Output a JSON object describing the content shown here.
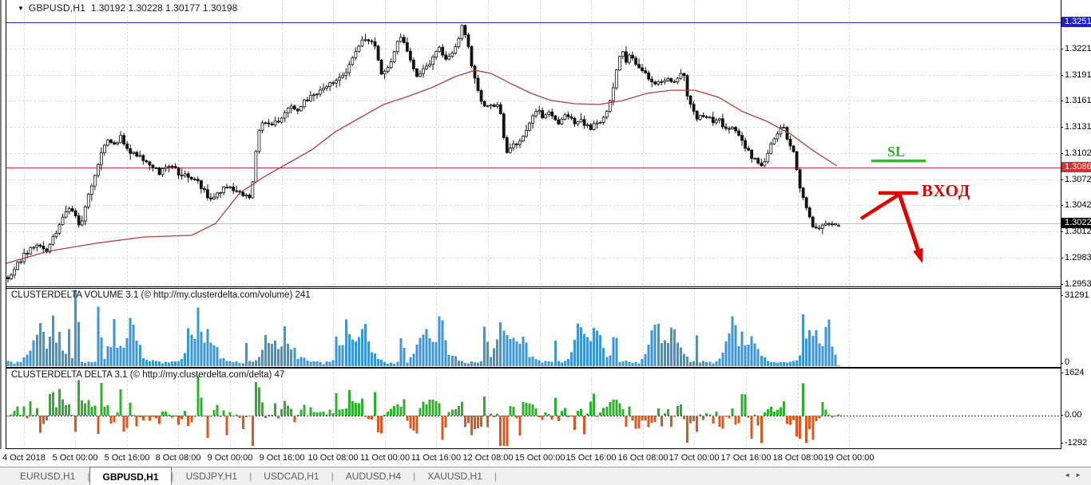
{
  "window": {
    "dropdown_icon": "▼",
    "symbol_period": "GBPUSD,H1",
    "ohlc_text": "1.30192 1.30228 1.30177 1.30198"
  },
  "price_axis": {
    "labels": [
      {
        "text": "1.32510",
        "price": 1.3251,
        "style": "blue-box"
      },
      {
        "text": "1.32210",
        "price": 1.3221,
        "style": "plain"
      },
      {
        "text": "1.31910",
        "price": 1.3191,
        "style": "plain"
      },
      {
        "text": "1.31615",
        "price": 1.31615,
        "style": "plain"
      },
      {
        "text": "1.31315",
        "price": 1.31315,
        "style": "plain"
      },
      {
        "text": "1.31020",
        "price": 1.3102,
        "style": "plain"
      },
      {
        "text": "1.30860",
        "price": 1.3086,
        "style": "red-box"
      },
      {
        "text": "1.30720",
        "price": 1.3072,
        "style": "plain"
      },
      {
        "text": "1.30425",
        "price": 1.30425,
        "style": "plain"
      },
      {
        "text": "1.30223",
        "price": 1.30223,
        "style": "black-box"
      },
      {
        "text": "1.30125",
        "price": 1.30125,
        "style": "plain"
      },
      {
        "text": "1.29830",
        "price": 1.2983,
        "style": "plain"
      },
      {
        "text": "1.29530",
        "price": 1.2953,
        "style": "plain"
      }
    ]
  },
  "volume_panel": {
    "header": "CLUSTERDELTA VOLUME 3.1 (© http://my.clusterdelta.com/volume) 241",
    "axis_max": "31291",
    "axis_zero": "0"
  },
  "delta_panel": {
    "header": "CLUSTERDELTA DELTA 3.1 (© http://my.clusterdelta.com/delta) 47",
    "axis_max": "1624",
    "axis_zero": "0.00",
    "axis_min": "-1292"
  },
  "time_axis": {
    "labels": [
      "4 Oct 2018",
      "5 Oct 00:00",
      "5 Oct 16:00",
      "8 Oct 08:00",
      "9 Oct 00:00",
      "9 Oct 16:00",
      "10 Oct 08:00",
      "11 Oct 00:00",
      "11 Oct 16:00",
      "12 Oct 08:00",
      "15 Oct 00:00",
      "15 Oct 16:00",
      "16 Oct 08:00",
      "17 Oct 00:00",
      "17 Oct 16:00",
      "18 Oct 08:00",
      "19 Oct 00:00"
    ]
  },
  "annotations": {
    "sl_label": "SL",
    "entry_label": "ВХОД"
  },
  "tabs": [
    {
      "label": "EURUSD,H1",
      "active": false
    },
    {
      "label": "GBPUSD,H1",
      "active": true
    },
    {
      "label": "USDJPY,H1",
      "active": false
    },
    {
      "label": "USDCAD,H1",
      "active": false
    },
    {
      "label": "AUDUSD,H4",
      "active": false
    },
    {
      "label": "XAUUSD,H1",
      "active": false
    }
  ],
  "tab_scroll": {
    "left": "◄",
    "right": "►"
  },
  "colors": {
    "volume_bar": "#3d96d2",
    "delta_pos": "#2fae2f",
    "delta_neg": "#d8581f",
    "candle": "#111111",
    "candle_up_fill": "#ffffff",
    "ma_line": "#b04040",
    "level_red": "#cc3333",
    "level_blue": "#2a2ac0",
    "bid_line": "#bdbdbd",
    "grid": "#d2d2d2",
    "axis_box_blue": "#2222cc",
    "axis_box_red": "#cc3333",
    "axis_box_black": "#000000",
    "sl_green": "#3cb43c",
    "entry_red": "#e00000"
  },
  "chart_data": {
    "type": "candlestick",
    "symbol": "GBPUSD",
    "timeframe": "H1",
    "title": "GBPUSD,H1  1.30192 1.30228 1.30177 1.30198",
    "ylim": [
      1.29501,
      1.32765
    ],
    "levels": {
      "upper_blue_line": 1.3251,
      "stop_red_line": 1.3086,
      "bid": 1.30223
    },
    "last_candle": {
      "open": 1.30192,
      "high": 1.30228,
      "low": 1.30177,
      "close": 1.30198
    },
    "close_path": [
      [
        8,
        1.2958
      ],
      [
        20,
        1.2972
      ],
      [
        30,
        1.2986
      ],
      [
        45,
        1.2997
      ],
      [
        58,
        1.2991
      ],
      [
        70,
        1.3012
      ],
      [
        85,
        1.3042
      ],
      [
        95,
        1.303
      ],
      [
        100,
        1.3018
      ],
      [
        112,
        1.3058
      ],
      [
        125,
        1.3098
      ],
      [
        135,
        1.3118
      ],
      [
        145,
        1.3113
      ],
      [
        152,
        1.3122
      ],
      [
        160,
        1.3104
      ],
      [
        172,
        1.3101
      ],
      [
        182,
        1.3092
      ],
      [
        192,
        1.3086
      ],
      [
        200,
        1.3079
      ],
      [
        208,
        1.3085
      ],
      [
        215,
        1.309
      ],
      [
        222,
        1.308
      ],
      [
        230,
        1.3077
      ],
      [
        240,
        1.3074
      ],
      [
        250,
        1.3067
      ],
      [
        258,
        1.3055
      ],
      [
        265,
        1.3048
      ],
      [
        272,
        1.3057
      ],
      [
        280,
        1.3061
      ],
      [
        290,
        1.3063
      ],
      [
        298,
        1.3056
      ],
      [
        305,
        1.3054
      ],
      [
        312,
        1.305
      ],
      [
        318,
        1.3075
      ],
      [
        322,
        1.3125
      ],
      [
        330,
        1.3139
      ],
      [
        340,
        1.3136
      ],
      [
        350,
        1.3136
      ],
      [
        358,
        1.3147
      ],
      [
        365,
        1.3158
      ],
      [
        372,
        1.315
      ],
      [
        380,
        1.3161
      ],
      [
        390,
        1.3167
      ],
      [
        400,
        1.3172
      ],
      [
        410,
        1.3177
      ],
      [
        420,
        1.3186
      ],
      [
        430,
        1.319
      ],
      [
        440,
        1.3205
      ],
      [
        448,
        1.3224
      ],
      [
        455,
        1.323
      ],
      [
        462,
        1.3232
      ],
      [
        470,
        1.3222
      ],
      [
        478,
        1.3192
      ],
      [
        484,
        1.3195
      ],
      [
        490,
        1.3204
      ],
      [
        496,
        1.3222
      ],
      [
        500,
        1.3237
      ],
      [
        505,
        1.3228
      ],
      [
        512,
        1.3213
      ],
      [
        520,
        1.319
      ],
      [
        527,
        1.3195
      ],
      [
        535,
        1.32
      ],
      [
        542,
        1.3213
      ],
      [
        550,
        1.3222
      ],
      [
        557,
        1.3209
      ],
      [
        563,
        1.3212
      ],
      [
        570,
        1.322
      ],
      [
        575,
        1.3232
      ],
      [
        578,
        1.3248
      ],
      [
        582,
        1.3236
      ],
      [
        586,
        1.3227
      ],
      [
        590,
        1.3205
      ],
      [
        595,
        1.3187
      ],
      [
        600,
        1.3167
      ],
      [
        606,
        1.3154
      ],
      [
        612,
        1.3154
      ],
      [
        618,
        1.3157
      ],
      [
        625,
        1.3156
      ],
      [
        630,
        1.313
      ],
      [
        633,
        1.3099
      ],
      [
        638,
        1.3108
      ],
      [
        645,
        1.3112
      ],
      [
        652,
        1.3117
      ],
      [
        660,
        1.3131
      ],
      [
        668,
        1.3145
      ],
      [
        673,
        1.3154
      ],
      [
        680,
        1.314
      ],
      [
        687,
        1.3149
      ],
      [
        694,
        1.3142
      ],
      [
        700,
        1.3136
      ],
      [
        707,
        1.3145
      ],
      [
        714,
        1.3142
      ],
      [
        720,
        1.3133
      ],
      [
        727,
        1.314
      ],
      [
        734,
        1.3134
      ],
      [
        740,
        1.3131
      ],
      [
        747,
        1.3136
      ],
      [
        754,
        1.3138
      ],
      [
        760,
        1.3149
      ],
      [
        766,
        1.317
      ],
      [
        772,
        1.3195
      ],
      [
        778,
        1.322
      ],
      [
        784,
        1.3208
      ],
      [
        790,
        1.3215
      ],
      [
        796,
        1.3205
      ],
      [
        803,
        1.3199
      ],
      [
        810,
        1.319
      ],
      [
        817,
        1.3184
      ],
      [
        824,
        1.3181
      ],
      [
        831,
        1.3186
      ],
      [
        838,
        1.3187
      ],
      [
        845,
        1.3184
      ],
      [
        851,
        1.319
      ],
      [
        857,
        1.319
      ],
      [
        862,
        1.316
      ],
      [
        868,
        1.3149
      ],
      [
        874,
        1.314
      ],
      [
        880,
        1.3145
      ],
      [
        887,
        1.3143
      ],
      [
        893,
        1.3136
      ],
      [
        900,
        1.314
      ],
      [
        907,
        1.3131
      ],
      [
        914,
        1.3131
      ],
      [
        920,
        1.3127
      ],
      [
        927,
        1.3122
      ],
      [
        933,
        1.3108
      ],
      [
        940,
        1.3099
      ],
      [
        947,
        1.3095
      ],
      [
        953,
        1.309
      ],
      [
        958,
        1.3092
      ],
      [
        963,
        1.3108
      ],
      [
        970,
        1.3122
      ],
      [
        977,
        1.3129
      ],
      [
        982,
        1.3129
      ],
      [
        987,
        1.3115
      ],
      [
        992,
        1.3108
      ],
      [
        997,
        1.3086
      ],
      [
        1002,
        1.3063
      ],
      [
        1007,
        1.3049
      ],
      [
        1012,
        1.3035
      ],
      [
        1016,
        1.302
      ],
      [
        1020,
        1.3019
      ],
      [
        1025,
        1.3016
      ],
      [
        1030,
        1.3021
      ],
      [
        1036,
        1.3019
      ],
      [
        1042,
        1.3022
      ],
      [
        1047,
        1.302
      ],
      [
        1052,
        1.30198
      ]
    ],
    "ma_path": [
      [
        8,
        1.29764
      ],
      [
        60,
        1.29901
      ],
      [
        120,
        1.29992
      ],
      [
        180,
        1.30064
      ],
      [
        240,
        1.30083
      ],
      [
        270,
        1.30219
      ],
      [
        300,
        1.30564
      ],
      [
        330,
        1.30746
      ],
      [
        360,
        1.30901
      ],
      [
        390,
        1.31055
      ],
      [
        420,
        1.31264
      ],
      [
        450,
        1.31419
      ],
      [
        480,
        1.31573
      ],
      [
        510,
        1.31664
      ],
      [
        540,
        1.31764
      ],
      [
        570,
        1.31892
      ],
      [
        595,
        1.31964
      ],
      [
        615,
        1.31928
      ],
      [
        640,
        1.3181
      ],
      [
        665,
        1.31701
      ],
      [
        690,
        1.31619
      ],
      [
        720,
        1.31583
      ],
      [
        750,
        1.31574
      ],
      [
        780,
        1.31619
      ],
      [
        810,
        1.31701
      ],
      [
        840,
        1.31737
      ],
      [
        870,
        1.31737
      ],
      [
        900,
        1.31655
      ],
      [
        930,
        1.31492
      ],
      [
        960,
        1.31383
      ],
      [
        990,
        1.31237
      ],
      [
        1020,
        1.31037
      ],
      [
        1048,
        1.30874
      ]
    ],
    "hour_volume_profile": [
      0.05,
      0.04,
      0.04,
      0.05,
      0.06,
      0.09,
      0.14,
      0.26,
      0.38,
      0.46,
      0.42,
      0.34,
      0.3,
      0.36,
      0.48,
      0.44,
      0.33,
      0.22,
      0.14,
      0.1,
      0.08,
      0.06,
      0.05,
      0.05
    ],
    "volume_spikes": [
      [
        63,
        12500
      ],
      [
        70,
        9500
      ],
      [
        85,
        16000
      ],
      [
        93,
        31291
      ],
      [
        97,
        18000
      ],
      [
        123,
        26000
      ],
      [
        128,
        12000
      ],
      [
        148,
        8000
      ],
      [
        247,
        24500
      ],
      [
        251,
        14000
      ],
      [
        310,
        9500
      ],
      [
        420,
        13000
      ],
      [
        424,
        9000
      ],
      [
        500,
        11500
      ],
      [
        505,
        8000
      ],
      [
        607,
        16500
      ],
      [
        611,
        10000
      ],
      [
        695,
        10500
      ],
      [
        770,
        12000
      ],
      [
        871,
        12500
      ],
      [
        931,
        14500
      ],
      [
        935,
        9000
      ],
      [
        1004,
        22000
      ],
      [
        1008,
        12000
      ],
      [
        1047,
        5000
      ]
    ],
    "delta_spikes": [
      [
        50,
        -700
      ],
      [
        99,
        1450
      ],
      [
        103,
        600
      ],
      [
        123,
        -800
      ],
      [
        150,
        1050
      ],
      [
        163,
        520
      ],
      [
        247,
        1624
      ],
      [
        251,
        700
      ],
      [
        283,
        -820
      ],
      [
        305,
        -600
      ],
      [
        318,
        -1292
      ],
      [
        420,
        900
      ],
      [
        470,
        980
      ],
      [
        505,
        680
      ],
      [
        540,
        620
      ],
      [
        607,
        820
      ],
      [
        611,
        -500
      ],
      [
        650,
        -860
      ],
      [
        660,
        520
      ],
      [
        695,
        700
      ],
      [
        740,
        560
      ],
      [
        770,
        650
      ],
      [
        798,
        -540
      ],
      [
        830,
        -450
      ],
      [
        871,
        -700
      ],
      [
        900,
        -500
      ],
      [
        931,
        900
      ],
      [
        955,
        -1150
      ],
      [
        983,
        560
      ],
      [
        1007,
        1300
      ],
      [
        1012,
        -600
      ],
      [
        1030,
        520
      ]
    ],
    "subcharts": [
      {
        "name": "CLUSTERDELTA VOLUME 3.1",
        "type": "bar",
        "ylim": [
          0,
          31291
        ],
        "current": 241
      },
      {
        "name": "CLUSTERDELTA DELTA 3.1",
        "type": "bar",
        "ylim": [
          -1292,
          1624
        ],
        "current": 47
      }
    ]
  }
}
